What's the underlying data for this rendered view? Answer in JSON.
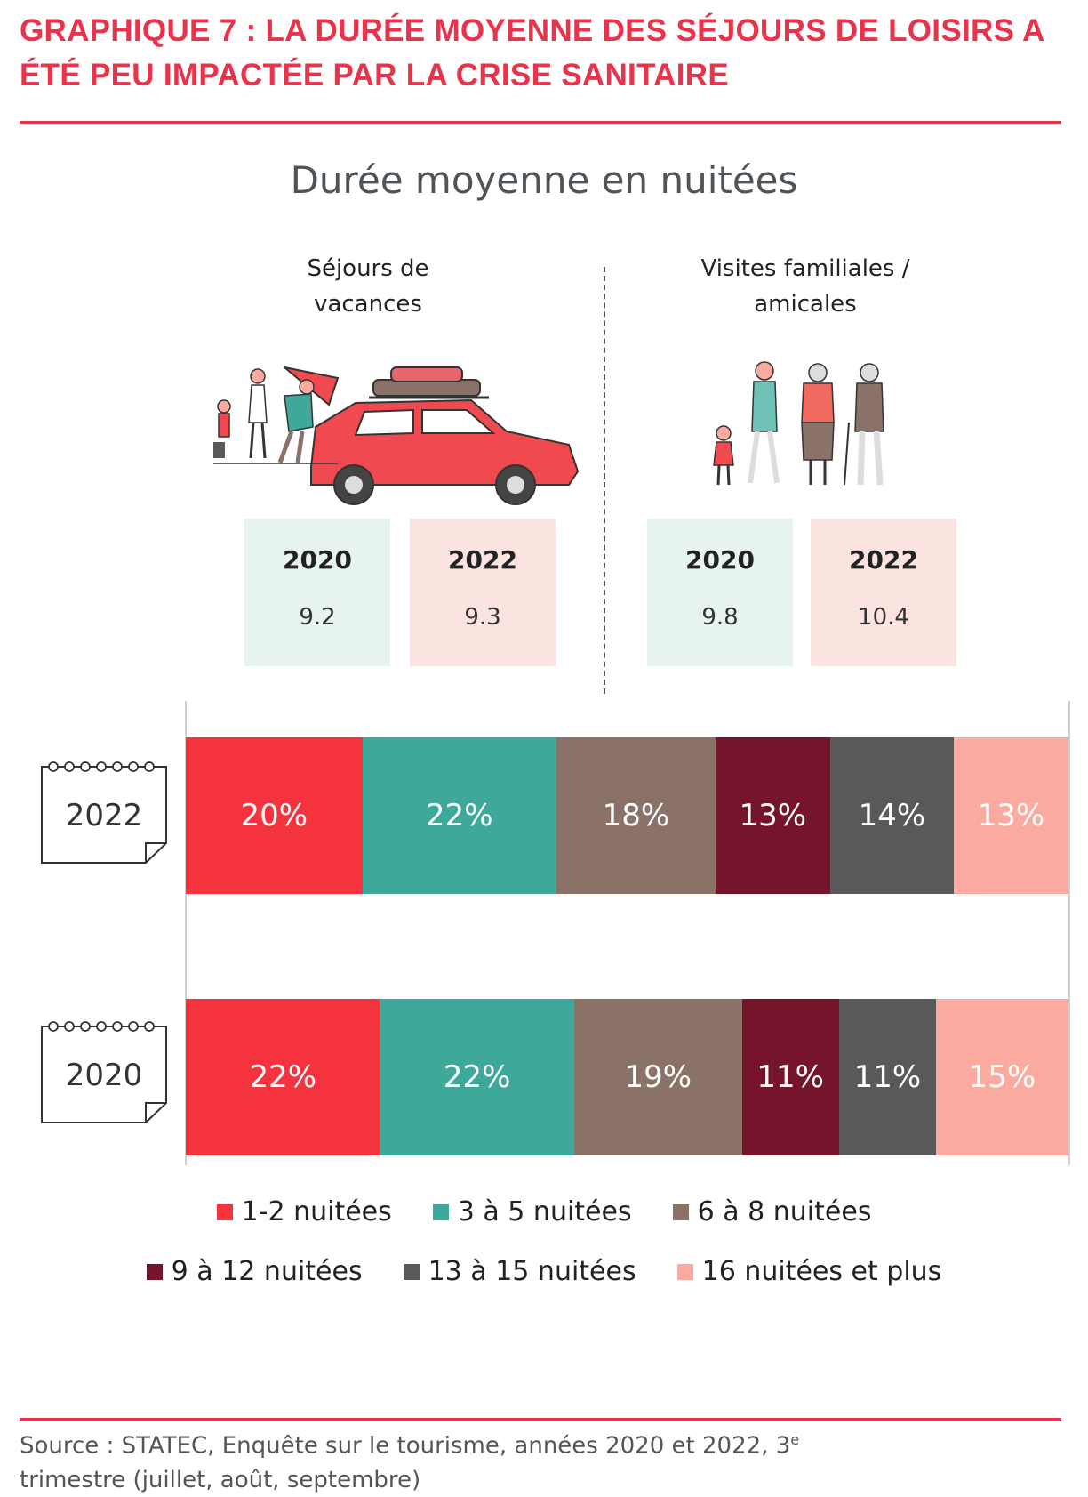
{
  "header": {
    "title_line1": "GRAPHIQUE 7 : LA DURÉE MOYENNE DES SÉJOURS DE LOISIRS A",
    "title_line2": "ÉTÉ PEU IMPACTÉE PAR LA CRISE SANITAIRE",
    "accent_color": "#e8334a"
  },
  "subtitle": "Durée moyenne en nuitées",
  "columns": [
    {
      "title_line1": "Séjours de",
      "title_line2": "vacances",
      "illustration": "family-car-icon",
      "stats": [
        {
          "year": "2020",
          "value": "9.2"
        },
        {
          "year": "2022",
          "value": "9.3"
        }
      ]
    },
    {
      "title_line1": "Visites familiales /",
      "title_line2": "amicales",
      "illustration": "family-walking-icon",
      "stats": [
        {
          "year": "2020",
          "value": "9.8"
        },
        {
          "year": "2022",
          "value": "10.4"
        }
      ]
    }
  ],
  "chart_data": {
    "type": "bar",
    "orientation": "horizontal-stacked-100",
    "categories": [
      "2022",
      "2020"
    ],
    "series": [
      {
        "name": "1-2 nuitées",
        "color": "#f5333f",
        "values": [
          20,
          22
        ],
        "labels": [
          "20%",
          "22%"
        ]
      },
      {
        "name": "3 à 5 nuitées",
        "color": "#3ea99a",
        "values": [
          22,
          22
        ],
        "labels": [
          "22%",
          "22%"
        ]
      },
      {
        "name": "6 à 8 nuitées",
        "color": "#8a7269",
        "values": [
          18,
          19
        ],
        "labels": [
          "18%",
          "19%"
        ]
      },
      {
        "name": "9 à 12 nuitées",
        "color": "#75142b",
        "values": [
          13,
          11
        ],
        "labels": [
          "13%",
          "11%"
        ]
      },
      {
        "name": "13 à 15 nuitées",
        "color": "#58595b",
        "values": [
          14,
          11
        ],
        "labels": [
          "14%",
          "11%"
        ]
      },
      {
        "name": "16 nuitées et plus",
        "color": "#fbaaa0",
        "values": [
          13,
          15
        ],
        "labels": [
          "13%",
          "15%"
        ]
      }
    ],
    "legend_position": "bottom",
    "grid": false
  },
  "source": {
    "text": "Source : STATEC, Enquête sur le tourisme, années 2020 et 2022, 3",
    "sup": "e",
    "text_line2": "trimestre (juillet, août, septembre)"
  }
}
